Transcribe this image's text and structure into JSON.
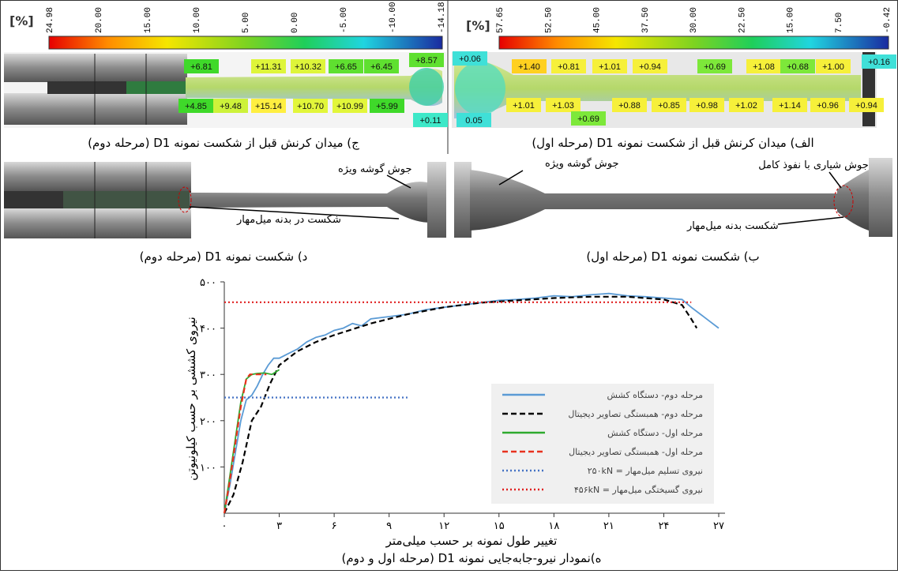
{
  "strain_panels": [
    {
      "caption": "ج) میدان کرنش قبل از شکست نمونه D1 (مرحله دوم)",
      "unit": "[%]",
      "colorbar_ticks": [
        "24.98",
        "20.00",
        "15.00",
        "10.00",
        "5.00",
        "0.00",
        "-5.00",
        "-10.00",
        "-14.18"
      ],
      "labels": [
        "+6.81",
        "+11.31",
        "+10.32",
        "+6.65",
        "+6.45",
        "+8.57",
        "+4.85",
        "+9.48",
        "+15.14",
        "+10.70",
        "+10.99",
        "+5.99",
        "+0.11"
      ]
    },
    {
      "caption": "الف) میدان کرنش قبل از شکست نمونه D1 (مرحله اول)",
      "unit": "[%]",
      "colorbar_ticks": [
        "57.65",
        "52.50",
        "45.00",
        "37.50",
        "30.00",
        "22.50",
        "15.00",
        "7.50",
        "-0.42"
      ],
      "labels": [
        "+0.06",
        "+1.40",
        "+0.81",
        "+1.01",
        "+0.94",
        "+0.69",
        "+1.08",
        "+0.68",
        "+1.00",
        "+0.16",
        "0.05",
        "+1.01",
        "+1.03",
        "+0.69",
        "+0.88",
        "+0.85",
        "+0.98",
        "+1.02",
        "+1.14",
        "+0.96",
        "+0.94"
      ]
    }
  ],
  "fracture_panels": [
    {
      "caption": "د) شکست نمونه D1 (مرحله دوم)",
      "annotations": [
        "جوش گوشه ویژه",
        "شکست در بدنه میل‌مهار"
      ]
    },
    {
      "caption": "ب) شکست نمونه D1 (مرحله اول)",
      "annotations": [
        "جوش گوشه ویژه",
        "جوش شیاری با نفوذ کامل",
        "شکست بدنه میل‌مهار"
      ]
    }
  ],
  "chart_data": {
    "type": "line",
    "caption": "ه)نمودار نیرو-جابه‌جایی نمونه D1 (مرحله اول و دوم)",
    "x_label": "تغییر طول نمونه بر حسب میلی‌متر",
    "y_label": "نیروی کششی بر حسب کیلونیوتن",
    "xlim": [
      0,
      27
    ],
    "ylim": [
      0,
      500
    ],
    "xticks": [
      {
        "value": 0,
        "label": "۰"
      },
      {
        "value": 3,
        "label": "۳"
      },
      {
        "value": 6,
        "label": "۶"
      },
      {
        "value": 9,
        "label": "۹"
      },
      {
        "value": 12,
        "label": "۱۲"
      },
      {
        "value": 15,
        "label": "۱۵"
      },
      {
        "value": 18,
        "label": "۱۸"
      },
      {
        "value": 21,
        "label": "۲۱"
      },
      {
        "value": 24,
        "label": "۲۴"
      },
      {
        "value": 27,
        "label": "۲۷"
      }
    ],
    "yticks": [
      {
        "value": 100,
        "label": "۱۰۰"
      },
      {
        "value": 200,
        "label": "۲۰۰"
      },
      {
        "value": 300,
        "label": "۳۰۰"
      },
      {
        "value": 400,
        "label": "۴۰۰"
      },
      {
        "value": 500,
        "label": "۵۰۰"
      }
    ],
    "series": [
      {
        "name": "مرحله دوم- دستگاه کشش",
        "color": "#5b9bd5",
        "dash": "solid",
        "x": [
          0,
          0.3,
          0.6,
          0.9,
          1.2,
          1.5,
          1.8,
          2.1,
          2.4,
          2.7,
          3,
          3.5,
          4,
          4.5,
          5,
          5.5,
          6,
          6.5,
          7,
          7.5,
          8,
          9,
          10,
          11,
          12,
          13,
          14,
          15,
          16,
          17,
          18,
          19,
          20,
          21,
          22,
          23,
          24,
          25,
          25.5,
          26,
          26.5,
          27
        ],
        "values": [
          0,
          60,
          130,
          200,
          245,
          255,
          275,
          300,
          320,
          335,
          335,
          345,
          355,
          370,
          380,
          385,
          395,
          400,
          410,
          405,
          420,
          425,
          430,
          440,
          445,
          450,
          455,
          460,
          462,
          465,
          470,
          468,
          472,
          475,
          470,
          468,
          465,
          462,
          445,
          430,
          415,
          400
        ]
      },
      {
        "name": "مرحله دوم- همبستگی تصاویر دیجیتال",
        "color": "#000000",
        "dash": "dashed",
        "x": [
          0,
          0.5,
          1,
          1.5,
          2,
          2.5,
          3,
          4,
          5,
          6,
          8,
          10,
          12,
          14,
          16,
          18,
          20,
          22,
          24,
          25,
          25.5,
          25.8
        ],
        "values": [
          0,
          40,
          110,
          200,
          230,
          280,
          320,
          350,
          370,
          385,
          410,
          430,
          445,
          455,
          460,
          465,
          468,
          468,
          462,
          450,
          420,
          400
        ]
      },
      {
        "name": "مرحله اول- دستگاه کشش",
        "color": "#2eaa2e",
        "dash": "solid",
        "x": [
          0,
          0.3,
          0.6,
          0.9,
          1.2,
          1.5,
          1.8,
          2.2,
          2.6,
          3
        ],
        "values": [
          0,
          80,
          160,
          240,
          290,
          300,
          302,
          303,
          300,
          310
        ]
      },
      {
        "name": "مرحله اول- همبستگی تصاویر دیجیتال",
        "color": "#e8321e",
        "dash": "dashed",
        "x": [
          0,
          0.3,
          0.6,
          0.9,
          1.2,
          1.4,
          1.7,
          2,
          2.3
        ],
        "values": [
          0,
          70,
          150,
          230,
          290,
          300,
          300,
          300,
          300
        ]
      },
      {
        "name": "نیروی تسلیم میل‌مهار = ۲۵۰kN",
        "color": "#4472c4",
        "dash": "dotted",
        "x": [
          0,
          10
        ],
        "values": [
          250,
          250
        ]
      },
      {
        "name": "نیروی گسیختگی میل‌مهار = ۴۵۶kN",
        "color": "#e02020",
        "dash": "dotted",
        "x": [
          0,
          25.5
        ],
        "values": [
          456,
          456
        ]
      }
    ]
  }
}
